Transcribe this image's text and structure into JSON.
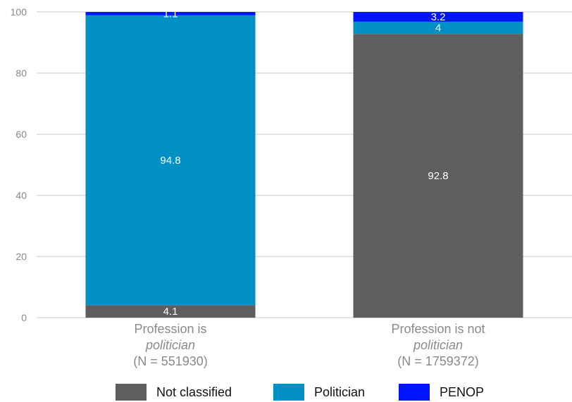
{
  "chart_data": {
    "type": "bar",
    "stacked": true,
    "categories": [
      {
        "line1": "Profession is",
        "line2": "politician",
        "line3": "(N = 551930)"
      },
      {
        "line1": "Profession is not",
        "line2": "politician",
        "line3": "(N = 1759372)"
      }
    ],
    "series": [
      {
        "name": "Not classified",
        "color": "#5e5e5e",
        "values": [
          4.1,
          92.8
        ]
      },
      {
        "name": "Politician",
        "color": "#0090c6",
        "values": [
          94.8,
          4
        ]
      },
      {
        "name": "PENOP",
        "color": "#0014ff",
        "values": [
          1.1,
          3.2
        ]
      }
    ],
    "ylim": [
      0,
      100
    ],
    "yticks": [
      0,
      20,
      40,
      60,
      80,
      100
    ],
    "grid": true,
    "legend_position": "bottom"
  }
}
